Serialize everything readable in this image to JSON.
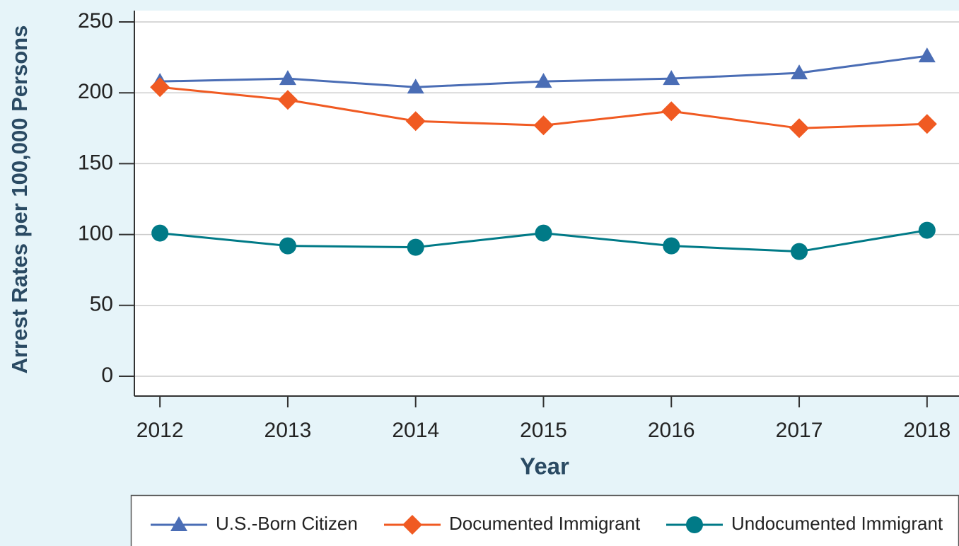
{
  "chart_data": {
    "type": "line",
    "x_label": "Year",
    "y_label": "Arrest Rates per 100,000 Persons",
    "x": [
      2012,
      2013,
      2014,
      2015,
      2016,
      2017,
      2018
    ],
    "series": [
      {
        "name": "U.S.-Born Citizen",
        "color": "#4a6db5",
        "marker": "triangle",
        "values": [
          208,
          210,
          204,
          208,
          210,
          214,
          226
        ]
      },
      {
        "name": "Documented Immigrant",
        "color": "#f05a22",
        "marker": "diamond",
        "values": [
          204,
          195,
          180,
          177,
          187,
          175,
          178
        ]
      },
      {
        "name": "Undocumented Immigrant",
        "color": "#007a87",
        "marker": "circle",
        "values": [
          101,
          92,
          91,
          101,
          92,
          88,
          103
        ]
      }
    ],
    "xlim": [
      2011.8,
      2018.25
    ],
    "xticks": [
      2012,
      2013,
      2014,
      2015,
      2016,
      2017,
      2018
    ],
    "ylim": [
      -14,
      258
    ],
    "yticks": [
      0,
      50,
      100,
      150,
      200,
      250
    ],
    "grid": true,
    "legend": "bottom"
  }
}
